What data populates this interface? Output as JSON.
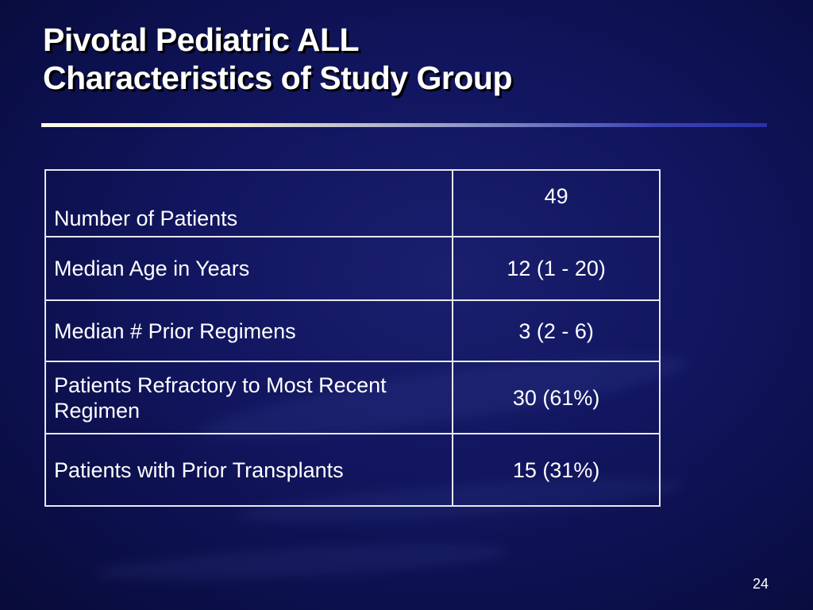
{
  "slide": {
    "title_line_1": "Pivotal Pediatric ALL",
    "title_line_2": "Characteristics of Study Group",
    "page_number": "24"
  },
  "table": {
    "rows": [
      {
        "label": "Number of Patients",
        "value": "49"
      },
      {
        "label": "Median Age in Years",
        "value": "12 (1 - 20)"
      },
      {
        "label": "Median # Prior Regimens",
        "value": "3 (2 - 6)"
      },
      {
        "label": "Patients Refractory to Most Recent Regimen",
        "value": "30 (61%)"
      },
      {
        "label": "Patients with Prior Transplants",
        "value": "15 (31%)"
      }
    ]
  },
  "colors": {
    "background": "#121660",
    "text": "#ffffff",
    "rule_start": "#fffbe6",
    "rule_end": "#2a31a8",
    "table_border": "#e8e8f0"
  }
}
